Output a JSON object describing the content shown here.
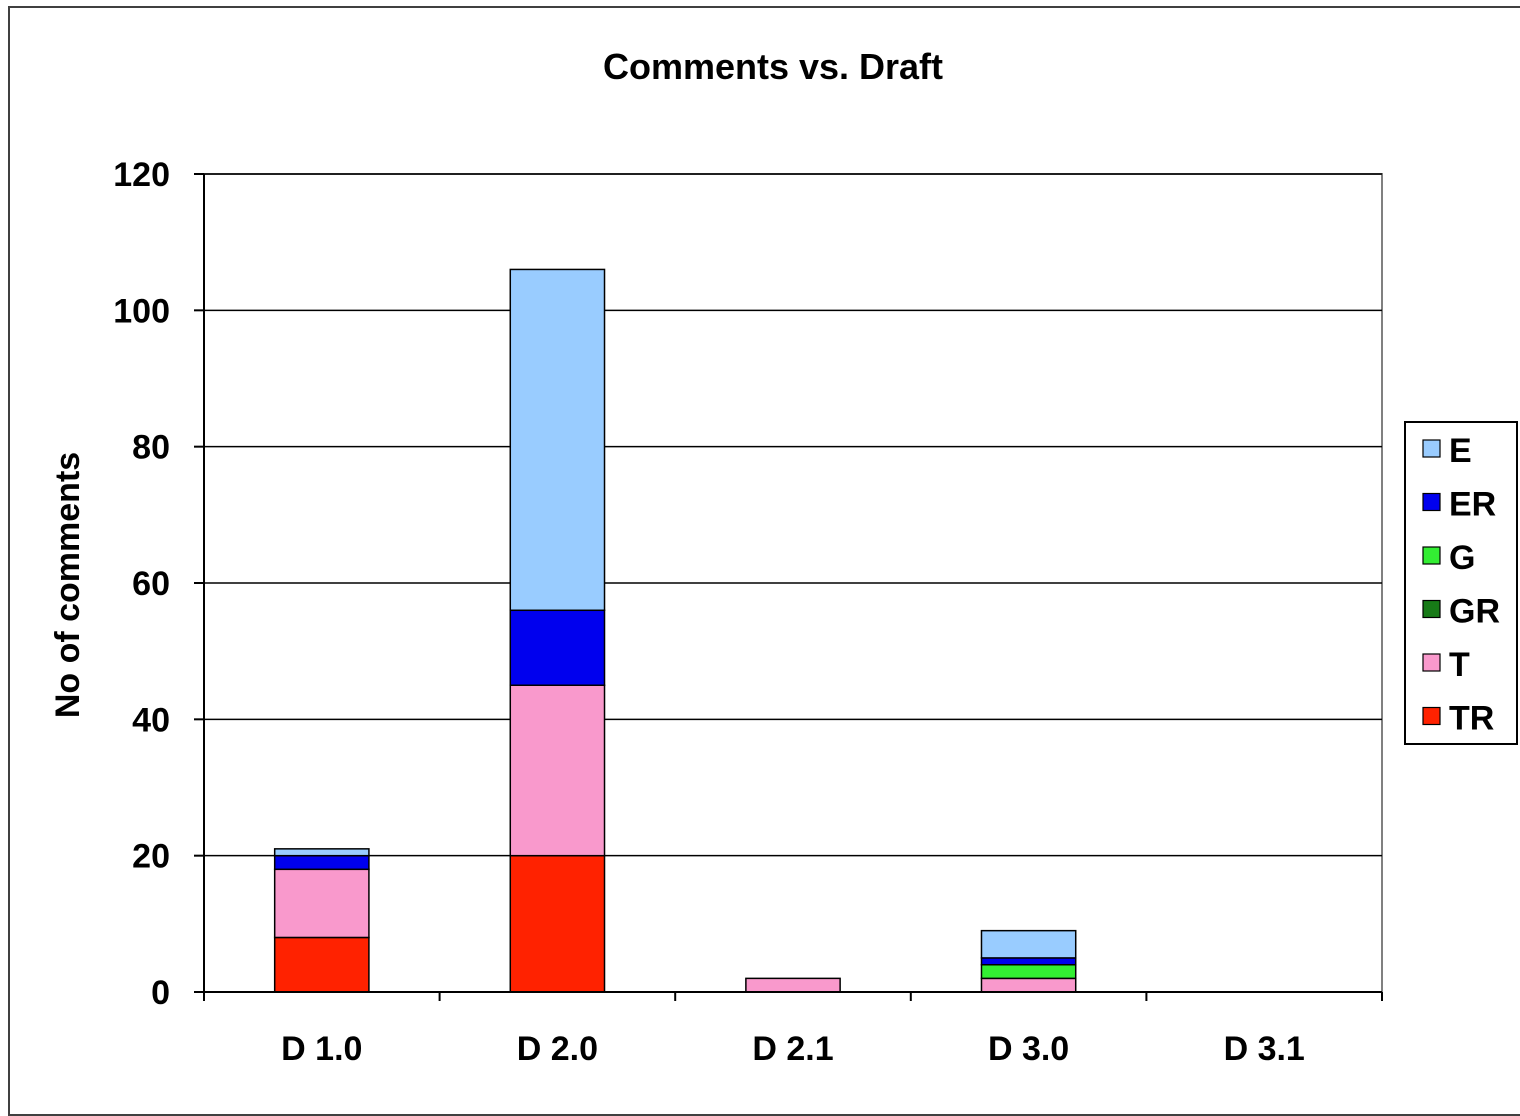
{
  "chart_data": {
    "type": "bar",
    "stacked": true,
    "title": "Comments vs. Draft",
    "xlabel": "",
    "ylabel": "No of comments",
    "ylim": [
      0,
      120
    ],
    "yticks": [
      0,
      20,
      40,
      60,
      80,
      100,
      120
    ],
    "grid": true,
    "legend_position": "right",
    "categories": [
      "D 1.0",
      "D 2.0",
      "D 2.1",
      "D 3.0",
      "D 3.1"
    ],
    "series": [
      {
        "name": "TR",
        "color": "#ff2200",
        "values": [
          8,
          20,
          0,
          0,
          0
        ]
      },
      {
        "name": "T",
        "color": "#f999cc",
        "values": [
          10,
          25,
          2,
          2,
          0
        ]
      },
      {
        "name": "GR",
        "color": "#177a17",
        "values": [
          0,
          0,
          0,
          0,
          0
        ]
      },
      {
        "name": "G",
        "color": "#33ee33",
        "values": [
          0,
          0,
          0,
          2,
          0
        ]
      },
      {
        "name": "ER",
        "color": "#0000ee",
        "values": [
          2,
          11,
          0,
          1,
          0
        ]
      },
      {
        "name": "E",
        "color": "#99ccff",
        "values": [
          1,
          50,
          0,
          4,
          0
        ]
      }
    ],
    "legend_order": [
      "E",
      "ER",
      "G",
      "GR",
      "T",
      "TR"
    ]
  }
}
